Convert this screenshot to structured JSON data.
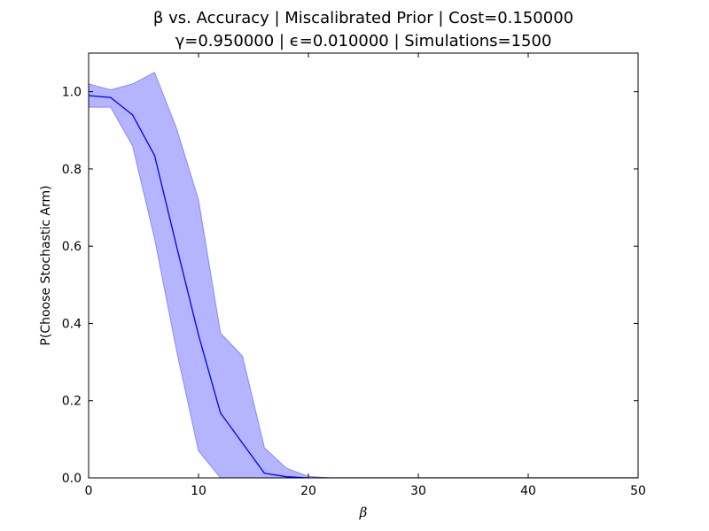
{
  "chart_data": {
    "type": "line",
    "title_line1": "β vs. Accuracy | Miscalibrated Prior | Cost=0.150000",
    "title_line2": "γ=0.950000 | ϵ=0.010000 | Simulations=1500",
    "xlabel": "β",
    "ylabel": "P(Choose Stochastic Arm)",
    "xlim": [
      0,
      50
    ],
    "ylim": [
      0,
      1.1
    ],
    "xticks": [
      0,
      10,
      20,
      30,
      40,
      50
    ],
    "xtick_labels": [
      "0",
      "10",
      "20",
      "30",
      "40",
      "50"
    ],
    "yticks": [
      0.0,
      0.2,
      0.4,
      0.6,
      0.8,
      1.0
    ],
    "ytick_labels": [
      "0.0",
      "0.2",
      "0.4",
      "0.6",
      "0.8",
      "1.0"
    ],
    "grid": false,
    "colors": {
      "line": "#0000ff",
      "band": "#7777ff"
    },
    "series": [
      {
        "x": [
          0,
          2,
          4,
          6,
          8,
          10,
          12,
          14,
          16,
          18,
          20,
          22,
          24,
          26,
          28,
          30,
          32,
          34,
          36,
          38,
          40,
          42,
          44,
          46,
          48,
          50
        ],
        "mean": [
          0.99,
          0.985,
          0.94,
          0.835,
          0.6,
          0.37,
          0.168,
          0.09,
          0.012,
          0.003,
          0.0,
          0.0,
          0.0,
          0.0,
          0.0,
          0.0,
          0.0,
          0.0,
          0.0,
          0.0,
          0.0,
          0.0,
          0.0,
          0.0,
          0.0,
          0.0
        ],
        "upper": [
          1.02,
          1.005,
          1.02,
          1.05,
          0.905,
          0.72,
          0.375,
          0.315,
          0.078,
          0.025,
          0.004,
          0.0,
          0.0,
          0.0,
          0.0,
          0.0,
          0.0,
          0.0,
          0.0,
          0.0,
          0.0,
          0.0,
          0.0,
          0.0,
          0.0,
          0.0
        ],
        "lower": [
          0.96,
          0.96,
          0.86,
          0.62,
          0.33,
          0.07,
          0.0,
          0.0,
          0.0,
          0.0,
          0.0,
          0.0,
          0.0,
          0.0,
          0.0,
          0.0,
          0.0,
          0.0,
          0.0,
          0.0,
          0.0,
          0.0,
          0.0,
          0.0,
          0.0,
          0.0
        ]
      }
    ]
  }
}
